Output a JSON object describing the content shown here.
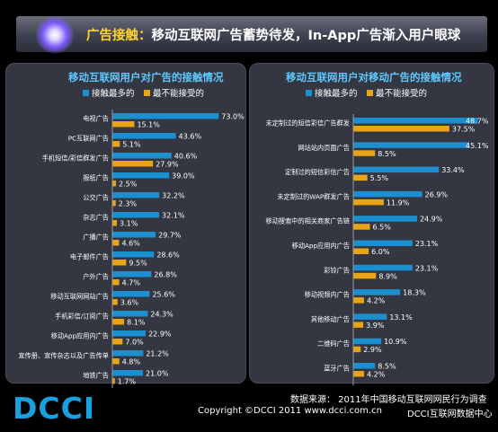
{
  "banner": {
    "highlight": "广告接触：",
    "text": "移动互联网广告蓄势待发，In-App广告渐入用户眼球"
  },
  "logo_text": "DCCI",
  "footer": {
    "source": "数据来源：  2011年中国移动互联网网民行为调查",
    "copyright": "Copyright ©DCCI 2011    www.dcci.com.cn",
    "org": "DCCI互联网数据中心"
  },
  "colors": {
    "blue": "#1b8fd0",
    "orange": "#e8a317",
    "title": "#5fc8ff",
    "highlight": "#ffd42a"
  },
  "chart_data": [
    {
      "type": "bar",
      "orientation": "horizontal",
      "title": "移动互联网用户对广告的接触情况",
      "legend": [
        "接触最多的",
        "最不能接受的"
      ],
      "categories": [
        "电视广告",
        "PC互联网广告",
        "手机短信/彩信群发广告",
        "报纸广告",
        "公交广告",
        "杂志广告",
        "广播广告",
        "电子邮件广告",
        "户外广告",
        "移动互联网网站广告",
        "手机彩信/订阅广告",
        "移动App应用内广告",
        "宣传册、宣传杂志以及广告传单",
        "地铁广告"
      ],
      "series": [
        {
          "name": "接触最多的",
          "values": [
            73.0,
            43.6,
            40.6,
            39.0,
            32.2,
            32.1,
            29.7,
            28.6,
            26.8,
            25.6,
            24.3,
            22.9,
            21.2,
            21.0
          ],
          "labels": [
            "73.0%",
            "43.6%",
            "40.6%",
            "39.0%",
            "32.2%",
            "32.1%",
            "29.7%",
            "28.6%",
            "26.8%",
            "25.6%",
            "24.3%",
            "22.9%",
            "21.2%",
            "21.0%"
          ]
        },
        {
          "name": "最不能接受的",
          "values": [
            15.1,
            5.1,
            27.9,
            2.5,
            2.3,
            3.1,
            4.6,
            9.5,
            4.7,
            3.6,
            8.1,
            7.0,
            4.8,
            1.7
          ],
          "labels": [
            "15.1%",
            "5.1%",
            "27.9%",
            "2.5%",
            "2.3%",
            "3.1%",
            "4.6%",
            "9.5%",
            "4.7%",
            "3.6%",
            "8.1%",
            "7.0%",
            "4.8%",
            "1.7%"
          ]
        }
      ]
    },
    {
      "type": "bar",
      "orientation": "horizontal",
      "title": "移动互联网用户对移动广告的接触情况",
      "legend": [
        "接触最多的",
        "最不能接受的"
      ],
      "categories": [
        "未定制过的短信彩信广告群发",
        "网站站内页面广告",
        "定制过的短信彩信广告",
        "未定制过的WAP群发广告",
        "移动搜索中的相关商家广告链",
        "移动App应用内广告",
        "彩铃广告",
        "移动视频内广告",
        "其他移动广告",
        "二维码广告",
        "蓝牙广告"
      ],
      "series": [
        {
          "name": "接触最多的",
          "values": [
            48.7,
            45.1,
            33.4,
            26.9,
            24.9,
            23.1,
            23.1,
            18.3,
            13.1,
            10.9,
            8.5
          ],
          "labels": [
            "48.7%",
            "45.1%",
            "33.4%",
            "26.9%",
            "24.9%",
            "23.1%",
            "23.1%",
            "18.3%",
            "13.1%",
            "10.9%",
            "8.5%"
          ]
        },
        {
          "name": "最不能接受的",
          "values": [
            37.5,
            8.5,
            5.5,
            11.9,
            6.5,
            6.0,
            8.9,
            4.2,
            3.9,
            2.9,
            4.2
          ],
          "labels": [
            "37.5%",
            "8.5%",
            "5.5%",
            "11.9%",
            "6.5%",
            "6.0%",
            "8.9%",
            "4.2%",
            "3.9%",
            "2.9%",
            "4.2%"
          ]
        }
      ]
    }
  ]
}
